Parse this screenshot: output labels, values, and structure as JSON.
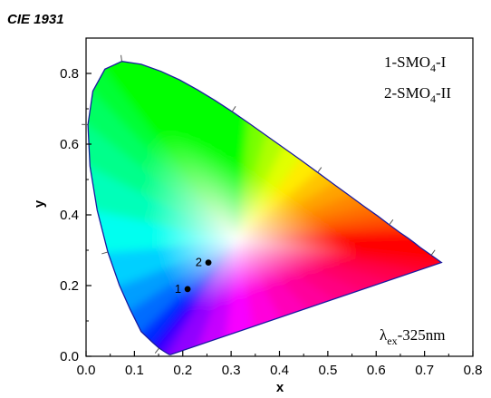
{
  "chart_data": {
    "type": "scatter",
    "title": "CIE 1931",
    "xlabel": "x",
    "ylabel": "y",
    "xlim": [
      0.0,
      0.8
    ],
    "ylim": [
      0.0,
      0.9
    ],
    "x_ticks": [
      "0.0",
      "0.1",
      "0.2",
      "0.3",
      "0.4",
      "0.5",
      "0.6",
      "0.7",
      "0.8"
    ],
    "y_ticks": [
      "0.0",
      "0.2",
      "0.4",
      "0.6",
      "0.8"
    ],
    "grid": false,
    "background": "CIE 1931 chromaticity diagram",
    "points": [
      {
        "label": "1",
        "x": 0.21,
        "y": 0.19
      },
      {
        "label": "2",
        "x": 0.253,
        "y": 0.265
      }
    ],
    "legend": {
      "entries": [
        {
          "prefix": "1-SMO",
          "sub": "4",
          "suffix": "-I"
        },
        {
          "prefix": "2-SMO",
          "sub": "4",
          "suffix": "-II"
        }
      ],
      "placement": "top-right"
    },
    "annotation": {
      "prefix": "λ",
      "sub": "ex",
      "suffix": "-325nm",
      "placement": "bottom-right"
    },
    "colors": {
      "axis": "#000000",
      "locus": "#1a1aa0",
      "marker": "#000000"
    }
  }
}
